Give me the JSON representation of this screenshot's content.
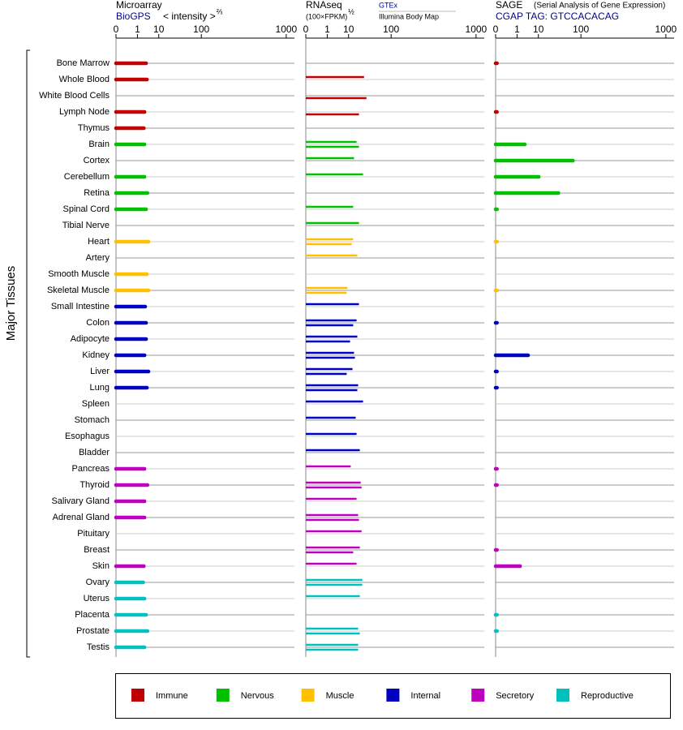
{
  "chart_data": {
    "type": "panels",
    "y_label": "Major Tissues",
    "groups": [
      {
        "name": "Immune",
        "color": "#c00000",
        "categories": [
          "Bone Marrow",
          "Whole Blood",
          "White Blood Cells",
          "Lymph Node",
          "Thymus"
        ]
      },
      {
        "name": "Nervous",
        "color": "#00c000",
        "categories": [
          "Brain",
          "Cortex",
          "Cerebellum",
          "Retina",
          "Spinal Cord",
          "Tibial Nerve"
        ]
      },
      {
        "name": "Muscle",
        "color": "#ffc000",
        "categories": [
          "Heart",
          "Artery",
          "Smooth Muscle",
          "Skeletal Muscle"
        ]
      },
      {
        "name": "Internal",
        "color": "#0000c0",
        "categories": [
          "Small Intestine",
          "Colon",
          "Adipocyte",
          "Kidney",
          "Liver",
          "Lung",
          "Spleen",
          "Stomach",
          "Esophagus",
          "Bladder"
        ]
      },
      {
        "name": "Secretory",
        "color": "#c000c0",
        "categories": [
          "Pancreas",
          "Thyroid",
          "Salivary Gland",
          "Adrenal Gland",
          "Pituitary",
          "Breast",
          "Skin"
        ]
      },
      {
        "name": "Reproductive",
        "color": "#00c0c0",
        "categories": [
          "Ovary",
          "Uterus",
          "Placenta",
          "Prostate",
          "Testis"
        ]
      }
    ],
    "panels": [
      {
        "type": "bar",
        "title": "Microarray",
        "source": "BioGPS",
        "x_label": "< intensity >",
        "x_label_power": "⅔",
        "xscale": "power",
        "xscale_exponent": 0.3,
        "xlim": [
          0,
          1170
        ],
        "xticks": [
          0,
          1,
          10,
          100,
          1000
        ],
        "series": [
          {
            "values": [
              3.1,
              3.4,
              null,
              2.6,
              2.4,
              2.6,
              null,
              2.6,
              3.6,
              3.1,
              null,
              4,
              null,
              3.4,
              4,
              2.8,
              3.1,
              3.1,
              2.6,
              4,
              3.4,
              null,
              null,
              null,
              null,
              2.6,
              3.6,
              2.6,
              2.6,
              null,
              null,
              2.4,
              2.2,
              2.6,
              3.1,
              3.6,
              2.6
            ]
          }
        ]
      },
      {
        "type": "bar",
        "title": "RNAseq",
        "x_label": "(100×FPKM)",
        "x_label_power": "½",
        "xscale": "power",
        "xscale_exponent": 0.3,
        "xlim": [
          0,
          1170
        ],
        "xticks": [
          0,
          1,
          10,
          100,
          1000
        ],
        "series": [
          {
            "name": "GTEx",
            "values": [
              null,
              28,
              null,
              null,
              null,
              17.7,
              14.9,
              26.4,
              null,
              14.1,
              20.6,
              14.1,
              18.6,
              null,
              9.2,
              20.6,
              17.7,
              18.6,
              14.9,
              13.4,
              19.6,
              26.4,
              16.7,
              17.7,
              21.8,
              11.8,
              23,
              17.7,
              19.6,
              24.2,
              21.8,
              17.7,
              25.3,
              21.8,
              null,
              19.6,
              19.6
            ]
          },
          {
            "name": "Illumina Body Map",
            "values": [
              null,
              null,
              32,
              20.6,
              null,
              20.6,
              null,
              null,
              null,
              null,
              null,
              12.6,
              null,
              null,
              8.6,
              null,
              14.1,
              11.2,
              15.8,
              8.6,
              18.6,
              null,
              null,
              null,
              null,
              null,
              24.2,
              null,
              20.6,
              null,
              14.1,
              null,
              25.3,
              null,
              null,
              21.8,
              19.6
            ]
          }
        ]
      },
      {
        "type": "bar",
        "title": "SAGE",
        "subtitle": "(Serial Analysis of Gene Expression)",
        "source": "CGAP TAG: GTCCACACAG",
        "xscale": "power",
        "xscale_exponent": 0.3,
        "xlim": [
          0,
          1170
        ],
        "xticks": [
          0,
          1,
          10,
          100,
          1000
        ],
        "series": [
          {
            "values": [
              0.0001,
              null,
              null,
              0.0001,
              null,
              2.8,
              72,
              10.3,
              36,
              0.0001,
              null,
              0.0001,
              null,
              null,
              0.0001,
              null,
              0.0001,
              null,
              4,
              0.0001,
              0.0001,
              null,
              null,
              null,
              null,
              0.0001,
              0.0001,
              null,
              null,
              null,
              0.0001,
              1.55,
              null,
              null,
              0.0001,
              0.0001,
              null
            ]
          }
        ]
      }
    ]
  }
}
